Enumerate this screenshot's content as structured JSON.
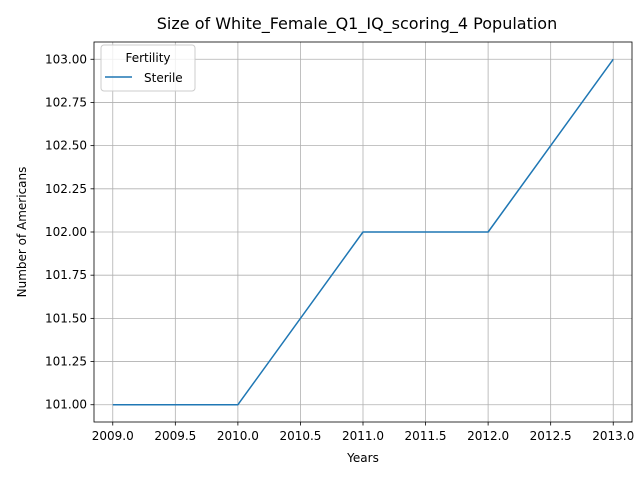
{
  "chart_data": {
    "type": "line",
    "title": "Size of White_Female_Q1_IQ_scoring_4 Population",
    "xlabel": "Years",
    "ylabel": "Number of Americans",
    "xlim": [
      2008.85,
      2013.15
    ],
    "ylim": [
      100.9,
      103.1
    ],
    "x_ticks": [
      2009.0,
      2009.5,
      2010.0,
      2010.5,
      2011.0,
      2011.5,
      2012.0,
      2012.5,
      2013.0
    ],
    "x_tick_labels": [
      "2009.0",
      "2009.5",
      "2010.0",
      "2010.5",
      "2011.0",
      "2011.5",
      "2012.0",
      "2012.5",
      "2013.0"
    ],
    "y_ticks": [
      101.0,
      101.25,
      101.5,
      101.75,
      102.0,
      102.25,
      102.5,
      102.75,
      103.0
    ],
    "y_tick_labels": [
      "101.00",
      "101.25",
      "101.50",
      "101.75",
      "102.00",
      "102.25",
      "102.50",
      "102.75",
      "103.00"
    ],
    "grid": true,
    "legend": {
      "title": "Fertility",
      "placement": "top-left"
    },
    "x": [
      2009,
      2010,
      2011,
      2012,
      2013
    ],
    "series": [
      {
        "name": "Sterile",
        "color": "#1f77b4",
        "values": [
          101,
          101,
          102,
          102,
          103
        ]
      }
    ]
  }
}
